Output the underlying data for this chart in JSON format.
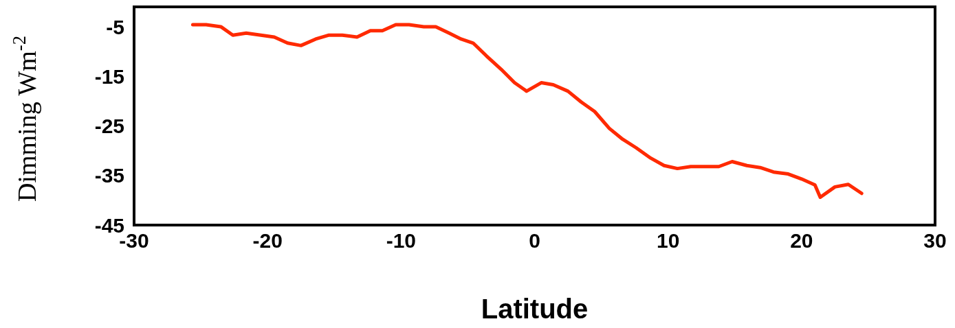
{
  "chart_data": {
    "type": "line",
    "xlabel": "Latitude",
    "ylabel": "Dimming Wm$^{-2}$",
    "x": [
      -25.6,
      -24.6,
      -23.5,
      -22.6,
      -21.6,
      -20.5,
      -19.5,
      -18.5,
      -17.5,
      -16.4,
      -15.4,
      -14.4,
      -13.3,
      -12.3,
      -11.4,
      -10.4,
      -9.4,
      -8.3,
      -7.4,
      -6.4,
      -5.5,
      -4.6,
      -3.6,
      -2.5,
      -1.5,
      -0.6,
      0.5,
      1.4,
      2.5,
      3.5,
      4.5,
      5.6,
      6.6,
      7.6,
      8.7,
      9.7,
      10.7,
      11.7,
      12.8,
      13.8,
      14.8,
      15.9,
      16.9,
      17.9,
      19.0,
      20.0,
      21.0,
      21.4,
      22.5,
      23.5,
      24.5
    ],
    "series": [
      {
        "color": "#ff2a00",
        "values": [
          -4.6,
          -4.6,
          -5.0,
          -6.7,
          -6.3,
          -6.7,
          -7.1,
          -8.3,
          -8.8,
          -7.5,
          -6.7,
          -6.7,
          -7.1,
          -5.8,
          -5.8,
          -4.6,
          -4.6,
          -5.0,
          -5.0,
          -6.3,
          -7.5,
          -8.3,
          -10.9,
          -13.6,
          -16.3,
          -18.0,
          -16.3,
          -16.7,
          -18.0,
          -20.2,
          -22.1,
          -25.5,
          -27.7,
          -29.4,
          -31.5,
          -33.0,
          -33.6,
          -33.2,
          -33.2,
          -33.2,
          -32.2,
          -33.0,
          -33.4,
          -34.3,
          -34.7,
          -35.7,
          -36.9,
          -39.4,
          -37.3,
          -36.8,
          -38.6
        ]
      }
    ],
    "xlim": [
      -30,
      30
    ],
    "xticks": [
      -30,
      -20,
      -10,
      0,
      10,
      20,
      30
    ],
    "ylim": [
      -45,
      -1
    ],
    "yticks": [
      -45,
      -35,
      -25,
      -15,
      -5
    ],
    "grid": false,
    "legend": false,
    "marker": "none",
    "line_style": "solid"
  }
}
